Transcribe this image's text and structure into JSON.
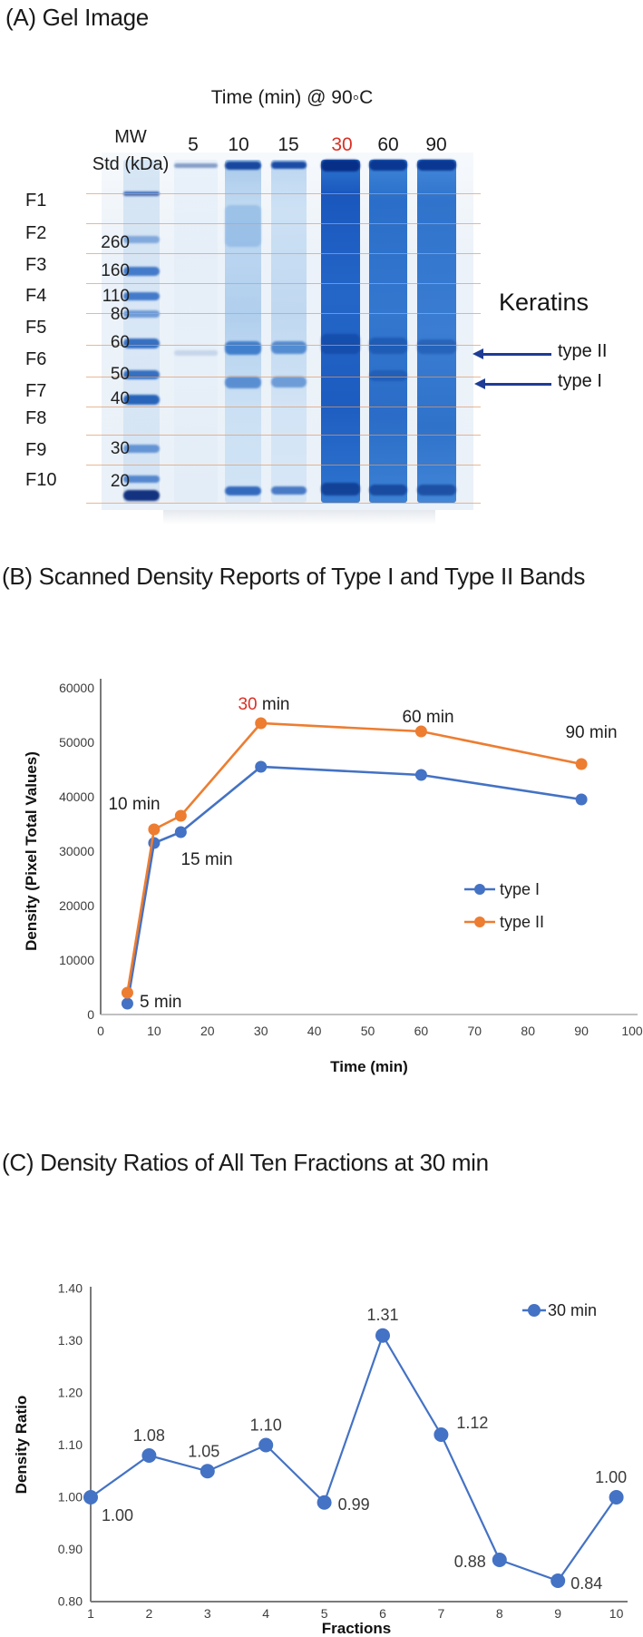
{
  "panelA": {
    "title": "(A) Gel Image",
    "time_header": "Time (min) @ 90◦C",
    "mw_header_line1": "MW",
    "mw_header_line2": "Std (kDa)",
    "lane_labels": [
      {
        "label": "5",
        "highlight": false
      },
      {
        "label": "10",
        "highlight": false
      },
      {
        "label": "15",
        "highlight": false
      },
      {
        "label": "30",
        "highlight": true
      },
      {
        "label": "60",
        "highlight": false
      },
      {
        "label": "90",
        "highlight": false
      }
    ],
    "fraction_labels": [
      "F1",
      "F2",
      "F3",
      "F4",
      "F5",
      "F6",
      "F7",
      "F8",
      "F9",
      "F10"
    ],
    "mw_markers": [
      "260",
      "160",
      "110",
      "80",
      "60",
      "50",
      "40",
      "30",
      "20"
    ],
    "right_labels": {
      "group": "Keratins",
      "band1": "type II",
      "band2": "type I"
    },
    "colors": {
      "highlight_red": "#d93025",
      "arrow_blue": "#1e3c96",
      "fraction_line": "#e09a6a",
      "gel_stain_blue": "#2466c8"
    }
  },
  "panelB": {
    "title": "(B) Scanned Density Reports of Type I and Type II Bands"
  },
  "panelC": {
    "title": "(C) Density Ratios of All Ten Fractions at 30 min"
  },
  "chart_data": [
    {
      "type": "line",
      "panel": "B",
      "xlabel": "Time (min)",
      "ylabel": "Density (Pixel Total Values)",
      "xlim": [
        0,
        100
      ],
      "ylim": [
        0,
        60000
      ],
      "x_ticks": [
        0,
        10,
        20,
        30,
        40,
        50,
        60,
        70,
        80,
        90,
        100
      ],
      "y_ticks": [
        0,
        10000,
        20000,
        30000,
        40000,
        50000,
        60000
      ],
      "x": [
        5,
        10,
        15,
        30,
        60,
        90
      ],
      "series": [
        {
          "name": "type I",
          "color": "#4472C4",
          "values": [
            2000,
            31500,
            33500,
            45500,
            44000,
            39500
          ]
        },
        {
          "name": "type II",
          "color": "#ED7D31",
          "values": [
            4000,
            34000,
            36500,
            53500,
            52000,
            46000
          ]
        }
      ],
      "annotations": [
        {
          "text": "5 min"
        },
        {
          "text": "10 min"
        },
        {
          "text": "15 min"
        },
        {
          "text": "30 min",
          "red_prefix": "30"
        },
        {
          "text": "60 min"
        },
        {
          "text": "90 min"
        }
      ],
      "highlight_color": "#d93025",
      "legend_position": "middle-right",
      "grid": false
    },
    {
      "type": "line",
      "panel": "C",
      "xlabel": "Fractions",
      "ylabel": "Density Ratio",
      "ylim": [
        0.8,
        1.4
      ],
      "y_ticks": [
        0.8,
        0.9,
        1.0,
        1.1,
        1.2,
        1.3,
        1.4
      ],
      "categories": [
        1,
        2,
        3,
        4,
        5,
        6,
        7,
        8,
        9,
        10
      ],
      "series": [
        {
          "name": "30 min",
          "color": "#4472C4",
          "values": [
            1.0,
            1.08,
            1.05,
            1.1,
            0.99,
            1.31,
            1.12,
            0.88,
            0.84,
            1.0
          ]
        }
      ],
      "data_labels": [
        "1.00",
        "1.08",
        "1.05",
        "1.10",
        "0.99",
        "1.31",
        "1.12",
        "0.88",
        "0.84",
        "1.00"
      ],
      "legend_position": "top-right",
      "grid": false
    }
  ]
}
